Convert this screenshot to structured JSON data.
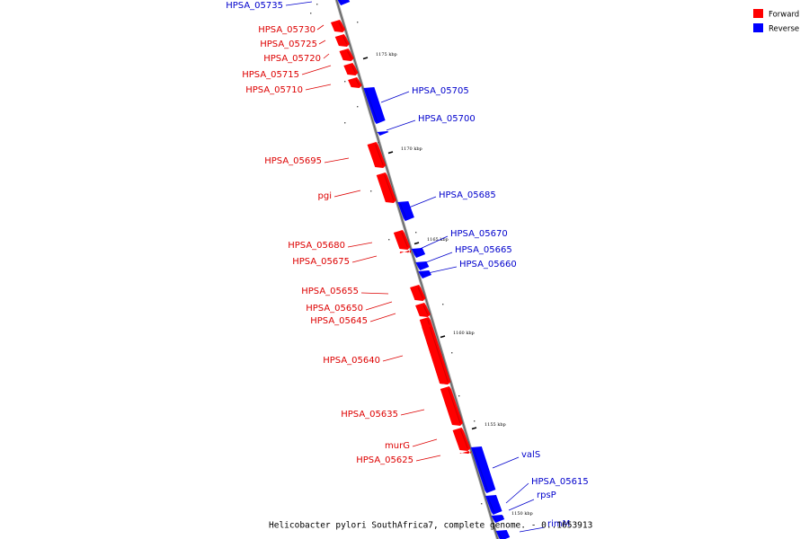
{
  "legend": {
    "forward": {
      "label": "Forward",
      "color": "#ff0000"
    },
    "reverse": {
      "label": "Reverse",
      "color": "#0000ff"
    }
  },
  "caption": "Helicobacter pylori SouthAfrica7, complete genome. - 0..1653913",
  "ticks": [
    "1175 kbp",
    "1170 kbp",
    "1165 kbp",
    "1160 kbp",
    "1155 kbp",
    "1150 kbp"
  ],
  "genes": {
    "hpsa_05735": "HPSA_05735",
    "hpsa_05730": "HPSA_05730",
    "hpsa_05725": "HPSA_05725",
    "hpsa_05720": "HPSA_05720",
    "hpsa_05715": "HPSA_05715",
    "hpsa_05710": "HPSA_05710",
    "hpsa_05705": "HPSA_05705",
    "hpsa_05700": "HPSA_05700",
    "hpsa_05695": "HPSA_05695",
    "pgi": "pgi",
    "hpsa_05685": "HPSA_05685",
    "hpsa_05680": "HPSA_05680",
    "hpsa_05675": "HPSA_05675",
    "hpsa_05670": "HPSA_05670",
    "hpsa_05665": "HPSA_05665",
    "hpsa_05660": "HPSA_05660",
    "hpsa_05655": "HPSA_05655",
    "hpsa_05650": "HPSA_05650",
    "hpsa_05645": "HPSA_05645",
    "hpsa_05640": "HPSA_05640",
    "hpsa_05635": "HPSA_05635",
    "murG": "murG",
    "hpsa_05625": "HPSA_05625",
    "valS": "valS",
    "hpsa_05615": "HPSA_05615",
    "rpsP": "rpsP",
    "rimM": "rimM"
  }
}
